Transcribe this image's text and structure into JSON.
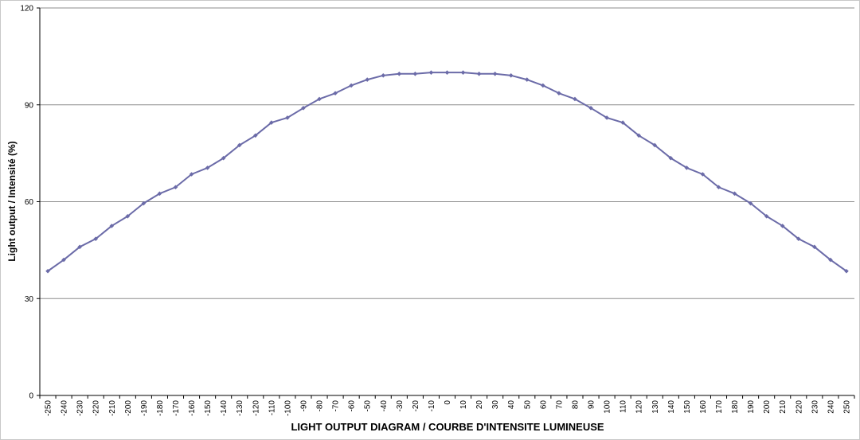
{
  "chart_data": {
    "type": "line",
    "title": "",
    "xlabel": "LIGHT OUTPUT DIAGRAM / COURBE D'INTENSITE LUMINEUSE",
    "ylabel": "Light output / Intensité (%)",
    "ylim": [
      0,
      120
    ],
    "yticks": [
      0,
      30,
      60,
      90,
      120
    ],
    "grid": "horizontal",
    "legend": "none",
    "x": [
      -250,
      -240,
      -230,
      -220,
      -210,
      -200,
      -190,
      -180,
      -170,
      -160,
      -150,
      -140,
      -130,
      -120,
      -110,
      -100,
      -90,
      -80,
      -70,
      -60,
      -50,
      -40,
      -30,
      -20,
      -10,
      0,
      10,
      20,
      30,
      40,
      50,
      60,
      70,
      80,
      90,
      100,
      110,
      120,
      130,
      140,
      150,
      160,
      170,
      180,
      190,
      200,
      210,
      220,
      230,
      240,
      250
    ],
    "series": [
      {
        "color": "#6b6ba8",
        "values": [
          38.5,
          42,
          46,
          48.5,
          52.5,
          55.5,
          59.5,
          62.5,
          64.5,
          68.5,
          70.5,
          73.5,
          77.5,
          80.5,
          84.5,
          86,
          89,
          91.8,
          93.6,
          96,
          97.8,
          99.1,
          99.6,
          99.6,
          100,
          100,
          100,
          99.6,
          99.6,
          99.1,
          97.8,
          96,
          93.6,
          91.8,
          89,
          86,
          84.5,
          80.5,
          77.5,
          73.5,
          70.5,
          68.5,
          64.5,
          62.5,
          59.5,
          55.5,
          52.5,
          48.5,
          46,
          42,
          38.5
        ]
      }
    ]
  }
}
